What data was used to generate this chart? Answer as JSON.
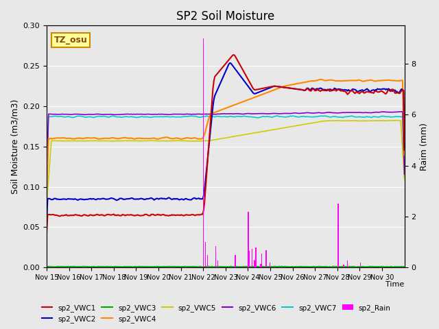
{
  "title": "SP2 Soil Moisture",
  "ylabel_left": "Soil Moisture (m3/m3)",
  "ylabel_right": "Raim (mm)",
  "xlabel": "Time",
  "annotation": "TZ_osu",
  "x_tick_labels": [
    "Nov 15",
    "Nov 16",
    "Nov 17",
    "Nov 18",
    "Nov 19",
    "Nov 20",
    "Nov 21",
    "Nov 22",
    "Nov 23",
    "Nov 24",
    "Nov 25",
    "Nov 26",
    "Nov 27",
    "Nov 28",
    "Nov 29",
    "Nov 30"
  ],
  "ylim_left": [
    0.0,
    0.3
  ],
  "ylim_right": [
    0.0,
    9.5
  ],
  "colors": {
    "sp2_VWC1": "#cc0000",
    "sp2_VWC2": "#0000cc",
    "sp2_VWC3": "#00aa00",
    "sp2_VWC4": "#ff8800",
    "sp2_VWC5": "#cccc00",
    "sp2_VWC6": "#8800cc",
    "sp2_VWC7": "#00cccc",
    "sp2_Rain": "#ff00ff"
  },
  "background_color": "#e8e8e8",
  "grid_color": "#ffffff"
}
